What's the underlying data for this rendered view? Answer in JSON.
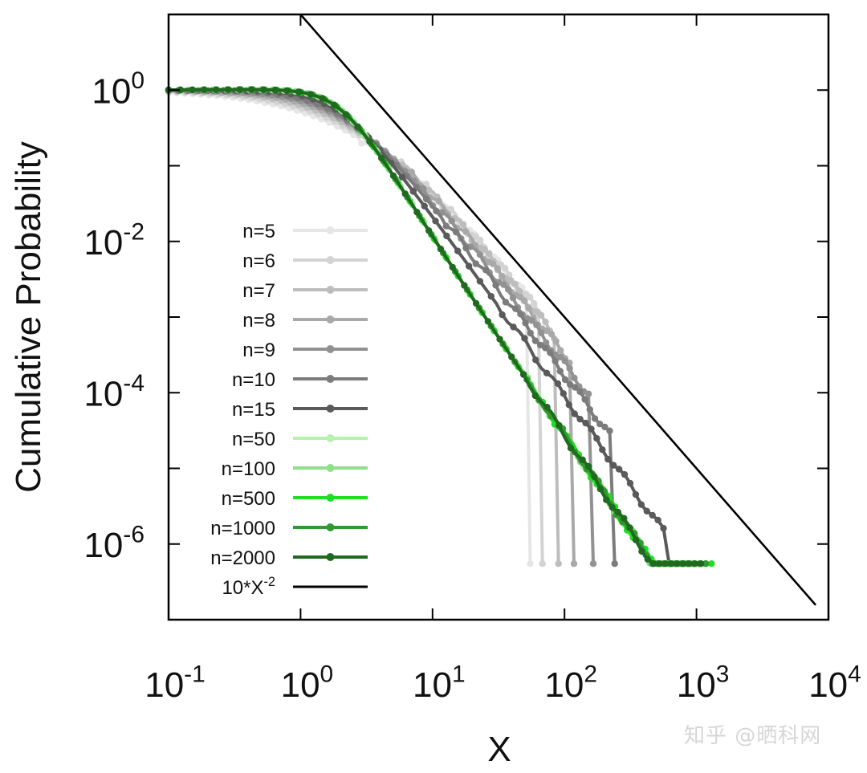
{
  "chart_data": {
    "type": "line",
    "title": "",
    "xlabel": "X",
    "ylabel": "Cumulative Probability",
    "x_scale": "log",
    "y_scale": "log",
    "xlim": [
      0.1,
      10000
    ],
    "ylim": [
      1e-07,
      10
    ],
    "x_ticks": [
      {
        "base": "10",
        "exp": "-1"
      },
      {
        "base": "10",
        "exp": "0"
      },
      {
        "base": "10",
        "exp": "1"
      },
      {
        "base": "10",
        "exp": "2"
      },
      {
        "base": "10",
        "exp": "3"
      },
      {
        "base": "10",
        "exp": "4"
      }
    ],
    "y_ticks": [
      {
        "base": "10",
        "exp": "0"
      },
      {
        "base": "10",
        "exp": "-2"
      },
      {
        "base": "10",
        "exp": "-4"
      },
      {
        "base": "10",
        "exp": "-6"
      }
    ],
    "grid": false,
    "legend_position": "left",
    "series": [
      {
        "name": "n=5",
        "color": "#e6e6e6",
        "params": {
          "k": 1.0,
          "tail": -3.3,
          "cross": 2.0,
          "end": 55
        }
      },
      {
        "name": "n=6",
        "color": "#d3d3d3",
        "params": {
          "k": 1.2,
          "tail": -3.1,
          "cross": 2.0,
          "end": 68
        }
      },
      {
        "name": "n=7",
        "color": "#bdbdbd",
        "params": {
          "k": 1.4,
          "tail": -2.95,
          "cross": 2.0,
          "end": 90
        }
      },
      {
        "name": "n=8",
        "color": "#a9a9a9",
        "params": {
          "k": 1.6,
          "tail": -2.8,
          "cross": 2.0,
          "end": 118
        }
      },
      {
        "name": "n=9",
        "color": "#929292",
        "params": {
          "k": 1.8,
          "tail": -2.7,
          "cross": 2.0,
          "end": 165
        }
      },
      {
        "name": "n=10",
        "color": "#7c7c7c",
        "params": {
          "k": 2.0,
          "tail": -2.6,
          "cross": 2.0,
          "end": 240
        }
      },
      {
        "name": "n=15",
        "color": "#5a5a5a",
        "params": {
          "k": 2.4,
          "tail": -2.35,
          "cross": 2.0,
          "end": 620
        }
      },
      {
        "name": "n=50",
        "color": "#b8f0b0",
        "params": {
          "k": 3.0,
          "tail": -2.05,
          "cross": 2.0,
          "end": 850
        }
      },
      {
        "name": "n=100",
        "color": "#8fe08a",
        "params": {
          "k": 3.0,
          "tail": -2.05,
          "cross": 2.0,
          "end": 900
        }
      },
      {
        "name": "n=500",
        "color": "#22dd22",
        "params": {
          "k": 3.0,
          "tail": -2.05,
          "cross": 2.0,
          "end": 1300
        }
      },
      {
        "name": "n=1000",
        "color": "#2f9a2f",
        "params": {
          "k": 3.0,
          "tail": -2.05,
          "cross": 2.0,
          "end": 1180
        }
      },
      {
        "name": "n=2000",
        "color": "#1f6a1f",
        "params": {
          "k": 3.0,
          "tail": -2.05,
          "cross": 2.0,
          "end": 1080
        }
      }
    ],
    "reference_line": {
      "name_base": "10*X",
      "name_exp": "-2",
      "color": "#000000",
      "x": [
        1,
        8000
      ],
      "y": [
        10,
        1.56e-07
      ]
    },
    "y_floor": 5.5e-07
  },
  "watermark": "知乎 @晒科网"
}
